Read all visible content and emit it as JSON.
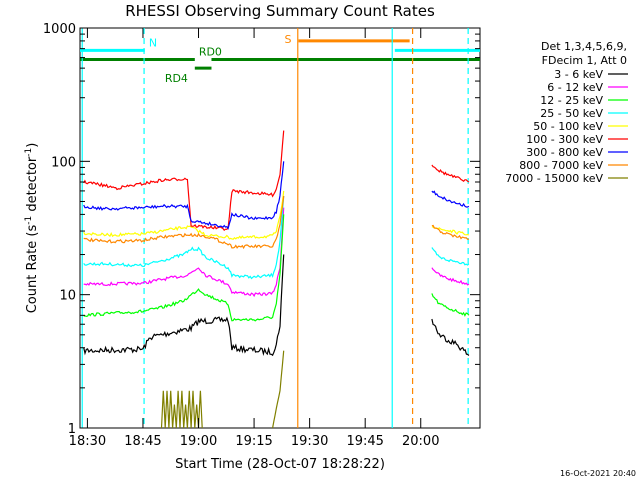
{
  "chart_data": {
    "type": "line",
    "title": "RHESSI Observing Summary Count Rates",
    "xlabel": "Start Time (28-Oct-07 18:28:22)",
    "ylabel_main": "Count Rate (s",
    "ylabel_sup1": "-1",
    "ylabel_mid": " detector",
    "ylabel_sup2": "-1",
    "ylabel_end": ")",
    "y_scale": "log",
    "x_range_min": [
      1108,
      1216
    ],
    "y_range": [
      1,
      1000
    ],
    "x_ticks": [
      {
        "label": "18:30",
        "min": 1110
      },
      {
        "label": "18:45",
        "min": 1125
      },
      {
        "label": "19:00",
        "min": 1140
      },
      {
        "label": "19:15",
        "min": 1155
      },
      {
        "label": "19:30",
        "min": 1170
      },
      {
        "label": "19:45",
        "min": 1185
      },
      {
        "label": "20:00",
        "min": 1200
      }
    ],
    "y_ticks": [
      {
        "label": "1",
        "value": 1
      },
      {
        "label": "10",
        "value": 10
      },
      {
        "label": "100",
        "value": 100
      },
      {
        "label": "1000",
        "value": 1000
      }
    ],
    "legend_header": [
      "Det 1,3,4,5,6,9,",
      "FDecim 1, Att 0"
    ],
    "legend_placement": "right",
    "series": [
      {
        "name": "3 - 6 keV",
        "color": "#000000",
        "segments": [
          [
            [
              1109,
              3.8
            ],
            [
              1125,
              3.9
            ],
            [
              1127,
              4.8
            ],
            [
              1138,
              5.6
            ],
            [
              1140,
              6.3
            ],
            [
              1148,
              6.5
            ],
            [
              1149,
              4.0
            ],
            [
              1160,
              3.7
            ],
            [
              1161,
              4.2
            ],
            [
              1162,
              6.0
            ],
            [
              1163,
              20
            ]
          ],
          [
            [
              1203,
              6.5
            ],
            [
              1205,
              5.0
            ],
            [
              1210,
              4.2
            ],
            [
              1213,
              3.5
            ]
          ]
        ]
      },
      {
        "name": "6 - 12 keV",
        "color": "#ff00ff",
        "segments": [
          [
            [
              1109,
              12
            ],
            [
              1115,
              12
            ],
            [
              1125,
              12.2
            ],
            [
              1130,
              13
            ],
            [
              1137,
              14
            ],
            [
              1140,
              16
            ],
            [
              1142,
              14
            ],
            [
              1148,
              12
            ],
            [
              1149,
              10.5
            ],
            [
              1155,
              10
            ],
            [
              1160,
              10.2
            ],
            [
              1161,
              12
            ],
            [
              1162,
              16
            ],
            [
              1163,
              45
            ]
          ],
          [
            [
              1203,
              16
            ],
            [
              1205,
              14
            ],
            [
              1208,
              13
            ],
            [
              1213,
              12
            ]
          ]
        ]
      },
      {
        "name": "12 - 25 keV",
        "color": "#00ff00",
        "segments": [
          [
            [
              1109,
              7
            ],
            [
              1115,
              7.2
            ],
            [
              1125,
              7.5
            ],
            [
              1130,
              8.0
            ],
            [
              1136,
              9.0
            ],
            [
              1140,
              11
            ],
            [
              1142,
              10
            ],
            [
              1148,
              8.5
            ],
            [
              1149,
              6.5
            ],
            [
              1156,
              6.5
            ],
            [
              1160,
              6.8
            ],
            [
              1161,
              8.5
            ],
            [
              1162,
              14
            ],
            [
              1163,
              40
            ]
          ],
          [
            [
              1203,
              10
            ],
            [
              1205,
              8.5
            ],
            [
              1208,
              7.8
            ],
            [
              1213,
              7
            ]
          ]
        ]
      },
      {
        "name": "25 - 50 keV",
        "color": "#00ffff",
        "segments": [
          [
            [
              1109,
              17
            ],
            [
              1115,
              17
            ],
            [
              1125,
              16.5
            ],
            [
              1130,
              18
            ],
            [
              1136,
              20
            ],
            [
              1138,
              22
            ],
            [
              1140,
              22
            ],
            [
              1142,
              19
            ],
            [
              1148,
              16
            ],
            [
              1149,
              14
            ],
            [
              1155,
              13.5
            ],
            [
              1160,
              14
            ],
            [
              1161,
              17
            ],
            [
              1162,
              25
            ],
            [
              1163,
              55
            ]
          ],
          [
            [
              1203,
              22
            ],
            [
              1205,
              19
            ],
            [
              1208,
              18
            ],
            [
              1213,
              17
            ]
          ]
        ]
      },
      {
        "name": "50 - 100 keV",
        "color": "#ffff00",
        "segments": [
          [
            [
              1109,
              29
            ],
            [
              1115,
              28
            ],
            [
              1125,
              28.5
            ],
            [
              1130,
              30
            ],
            [
              1136,
              32
            ],
            [
              1138,
              32
            ],
            [
              1140,
              30
            ],
            [
              1142,
              28
            ],
            [
              1148,
              27
            ],
            [
              1149,
              26.5
            ],
            [
              1155,
              27
            ],
            [
              1160,
              27.5
            ],
            [
              1161,
              30
            ],
            [
              1162,
              38
            ],
            [
              1163,
              60
            ]
          ],
          [
            [
              1203,
              33
            ],
            [
              1205,
              31
            ],
            [
              1208,
              30
            ],
            [
              1213,
              28
            ]
          ]
        ]
      },
      {
        "name": "100 - 300 keV",
        "color": "#ff0000",
        "segments": [
          [
            [
              1109,
              70
            ],
            [
              1112,
              68
            ],
            [
              1118,
              63
            ],
            [
              1125,
              68
            ],
            [
              1130,
              72
            ],
            [
              1136,
              74
            ],
            [
              1137,
              74
            ],
            [
              1138,
              33
            ],
            [
              1143,
              32
            ],
            [
              1148,
              31
            ],
            [
              1149,
              60
            ],
            [
              1155,
              58
            ],
            [
              1160,
              56
            ],
            [
              1161,
              62
            ],
            [
              1162,
              80
            ],
            [
              1163,
              170
            ]
          ],
          [
            [
              1203,
              95
            ],
            [
              1205,
              85
            ],
            [
              1208,
              78
            ],
            [
              1213,
              70
            ]
          ]
        ]
      },
      {
        "name": "300 - 800 keV",
        "color": "#0000ff",
        "segments": [
          [
            [
              1109,
              46
            ],
            [
              1115,
              44
            ],
            [
              1125,
              45
            ],
            [
              1130,
              46
            ],
            [
              1137,
              46
            ],
            [
              1138,
              36
            ],
            [
              1143,
              34
            ],
            [
              1148,
              32
            ],
            [
              1149,
              40
            ],
            [
              1155,
              37
            ],
            [
              1160,
              38
            ],
            [
              1161,
              42
            ],
            [
              1162,
              55
            ],
            [
              1163,
              100
            ]
          ],
          [
            [
              1203,
              60
            ],
            [
              1205,
              55
            ],
            [
              1208,
              50
            ],
            [
              1213,
              46
            ]
          ]
        ]
      },
      {
        "name": "800 - 7000 keV",
        "color": "#ff8800",
        "segments": [
          [
            [
              1109,
              26
            ],
            [
              1115,
              25
            ],
            [
              1125,
              25.5
            ],
            [
              1130,
              27
            ],
            [
              1136,
              28
            ],
            [
              1138,
              28
            ],
            [
              1140,
              28
            ],
            [
              1143,
              27
            ],
            [
              1148,
              24
            ],
            [
              1149,
              23
            ],
            [
              1155,
              23
            ],
            [
              1160,
              23
            ],
            [
              1161,
              26
            ],
            [
              1162,
              33
            ],
            [
              1163,
              55
            ]
          ],
          [
            [
              1203,
              33
            ],
            [
              1205,
              30
            ],
            [
              1208,
              28
            ],
            [
              1213,
              26
            ]
          ]
        ]
      },
      {
        "name": "7000 - 15000 keV",
        "color": "#808000",
        "segments": [
          [
            [
              1130,
              1
            ],
            [
              1130.5,
              1.9
            ],
            [
              1131,
              1
            ],
            [
              1131.5,
              1.9
            ],
            [
              1132,
              1
            ],
            [
              1132.5,
              1.9
            ],
            [
              1133,
              1
            ],
            [
              1133.5,
              1.5
            ],
            [
              1134,
              1
            ],
            [
              1134.5,
              1.9
            ],
            [
              1135,
              1
            ],
            [
              1135.5,
              1.9
            ],
            [
              1136,
              1
            ],
            [
              1136.5,
              1.5
            ],
            [
              1137,
              1
            ],
            [
              1137.5,
              1.9
            ],
            [
              1138,
              1
            ],
            [
              1138.5,
              1.9
            ],
            [
              1139,
              1
            ],
            [
              1139.5,
              1.5
            ],
            [
              1140,
              1
            ],
            [
              1140.5,
              1.9
            ],
            [
              1141,
              1
            ]
          ],
          [
            [
              1160,
              1
            ],
            [
              1161,
              1.4
            ],
            [
              1162,
              1.9
            ],
            [
              1163,
              3.8
            ]
          ]
        ]
      }
    ],
    "state_bars": [
      {
        "label": "N",
        "color": "#00ffff",
        "y": 680,
        "segments": [
          [
            1108,
            1125.5
          ],
          [
            1193,
            1216
          ]
        ]
      },
      {
        "label": "S",
        "color": "#ff8800",
        "y": 800,
        "segments": [
          [
            1167,
            1197
          ]
        ]
      },
      {
        "label": "RD0",
        "color": "#008000",
        "y": 580,
        "segments": [
          [
            1108,
            1139
          ],
          [
            1143.5,
            1216
          ]
        ]
      },
      {
        "label": "RD4",
        "color": "#008000",
        "y": 500,
        "segments": [
          [
            1139,
            1143.5
          ]
        ]
      }
    ],
    "vlines": [
      {
        "min": 1108.6,
        "color": "#00ffff",
        "style": "solid"
      },
      {
        "min": 1125.3,
        "color": "#00ffff",
        "style": "dashed"
      },
      {
        "min": 1166.8,
        "color": "#ff8800",
        "style": "solid"
      },
      {
        "min": 1192.3,
        "color": "#00ffff",
        "style": "solid"
      },
      {
        "min": 1197.8,
        "color": "#ff8800",
        "style": "dashed"
      },
      {
        "min": 1212.8,
        "color": "#00ffff",
        "style": "dashed"
      }
    ],
    "footer_date": "16-Oct-2021 20:40"
  }
}
